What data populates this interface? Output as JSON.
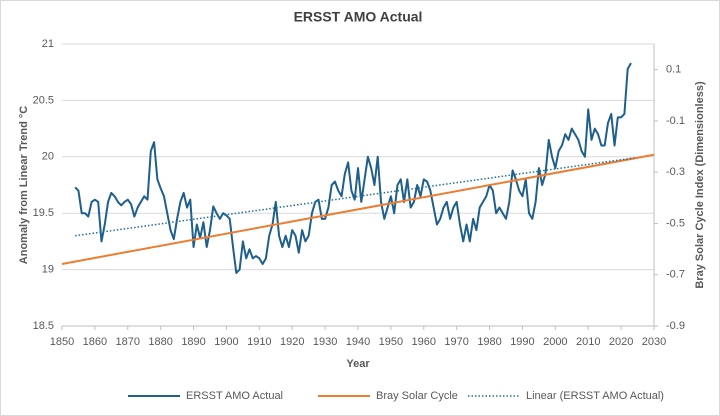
{
  "chart_data": {
    "type": "line",
    "title": "ERSST AMO Actual",
    "x_label": "Year",
    "y_label": "Anomaly from Linear Trend °C",
    "y2_label": "Bray Solar Cycle Index (Dimensionless)",
    "xlim": [
      1850,
      2030
    ],
    "xticks": [
      1850,
      1860,
      1870,
      1880,
      1890,
      1900,
      1910,
      1920,
      1930,
      1940,
      1950,
      1960,
      1970,
      1980,
      1990,
      2000,
      2010,
      2020,
      2030
    ],
    "ylim": [
      18.5,
      21
    ],
    "yticks": [
      18.5,
      19,
      19.5,
      20,
      20.5,
      21
    ],
    "y2lim": [
      -0.9,
      0.2
    ],
    "y2ticks": [
      0.1,
      -0.1,
      -0.3,
      -0.5,
      -0.7,
      -0.9
    ],
    "grid": true,
    "legend": "bottom",
    "series": [
      {
        "name": "ERSST AMO Actual",
        "color": "#1f5f8b",
        "axis": "y",
        "x": [
          1854,
          1855,
          1856,
          1857,
          1858,
          1859,
          1860,
          1861,
          1862,
          1863,
          1864,
          1865,
          1866,
          1867,
          1868,
          1869,
          1870,
          1871,
          1872,
          1873,
          1874,
          1875,
          1876,
          1877,
          1878,
          1879,
          1880,
          1881,
          1882,
          1883,
          1884,
          1885,
          1886,
          1887,
          1888,
          1889,
          1890,
          1891,
          1892,
          1893,
          1894,
          1895,
          1896,
          1897,
          1898,
          1899,
          1900,
          1901,
          1902,
          1903,
          1904,
          1905,
          1906,
          1907,
          1908,
          1909,
          1910,
          1911,
          1912,
          1913,
          1914,
          1915,
          1916,
          1917,
          1918,
          1919,
          1920,
          1921,
          1922,
          1923,
          1924,
          1925,
          1926,
          1927,
          1928,
          1929,
          1930,
          1931,
          1932,
          1933,
          1934,
          1935,
          1936,
          1937,
          1938,
          1939,
          1940,
          1941,
          1942,
          1943,
          1944,
          1945,
          1946,
          1947,
          1948,
          1949,
          1950,
          1951,
          1952,
          1953,
          1954,
          1955,
          1956,
          1957,
          1958,
          1959,
          1960,
          1961,
          1962,
          1963,
          1964,
          1965,
          1966,
          1967,
          1968,
          1969,
          1970,
          1971,
          1972,
          1973,
          1974,
          1975,
          1976,
          1977,
          1978,
          1979,
          1980,
          1981,
          1982,
          1983,
          1984,
          1985,
          1986,
          1987,
          1988,
          1989,
          1990,
          1991,
          1992,
          1993,
          1994,
          1995,
          1996,
          1997,
          1998,
          1999,
          2000,
          2001,
          2002,
          2003,
          2004,
          2005,
          2006,
          2007,
          2008,
          2009,
          2010,
          2011,
          2012,
          2013,
          2014,
          2015,
          2016,
          2017,
          2018,
          2019,
          2020,
          2021,
          2022,
          2023
        ],
        "values": [
          19.73,
          19.7,
          19.5,
          19.5,
          19.47,
          19.6,
          19.62,
          19.6,
          19.25,
          19.4,
          19.6,
          19.68,
          19.65,
          19.6,
          19.57,
          19.6,
          19.62,
          19.58,
          19.47,
          19.55,
          19.6,
          19.65,
          19.62,
          20.05,
          20.13,
          19.8,
          19.72,
          19.65,
          19.5,
          19.35,
          19.27,
          19.45,
          19.6,
          19.68,
          19.55,
          19.62,
          19.2,
          19.4,
          19.28,
          19.42,
          19.2,
          19.35,
          19.56,
          19.5,
          19.45,
          19.5,
          19.48,
          19.45,
          19.2,
          18.97,
          19.0,
          19.25,
          19.1,
          19.18,
          19.1,
          19.12,
          19.1,
          19.05,
          19.1,
          19.3,
          19.4,
          19.6,
          19.3,
          19.2,
          19.3,
          19.2,
          19.35,
          19.3,
          19.15,
          19.35,
          19.25,
          19.3,
          19.5,
          19.6,
          19.62,
          19.45,
          19.45,
          19.55,
          19.75,
          19.78,
          19.7,
          19.65,
          19.85,
          19.95,
          19.7,
          19.62,
          19.9,
          19.6,
          19.8,
          20.0,
          19.9,
          19.75,
          20.0,
          19.6,
          19.45,
          19.55,
          19.65,
          19.5,
          19.75,
          19.8,
          19.6,
          19.8,
          19.55,
          19.6,
          19.75,
          19.65,
          19.8,
          19.78,
          19.7,
          19.55,
          19.4,
          19.45,
          19.55,
          19.6,
          19.45,
          19.55,
          19.6,
          19.4,
          19.25,
          19.4,
          19.25,
          19.45,
          19.35,
          19.55,
          19.6,
          19.65,
          19.75,
          19.7,
          19.5,
          19.55,
          19.5,
          19.45,
          19.6,
          19.88,
          19.8,
          19.7,
          19.65,
          19.8,
          19.5,
          19.45,
          19.6,
          19.9,
          19.75,
          19.85,
          20.15,
          20.0,
          19.9,
          20.05,
          20.1,
          20.2,
          20.15,
          20.25,
          20.2,
          20.15,
          20.05,
          20.0,
          20.42,
          20.15,
          20.25,
          20.2,
          20.1,
          20.1,
          20.3,
          20.38,
          20.1,
          20.35,
          20.35,
          20.38,
          20.78,
          20.83
        ]
      },
      {
        "name": "Bray Solar Cycle",
        "color": "#ed7d31",
        "axis": "y2",
        "x": [
          1850,
          2030
        ],
        "values": [
          -0.658,
          -0.232
        ]
      },
      {
        "name": "Linear (ERSST AMO Actual)",
        "color": "#1f6f9a",
        "axis": "y",
        "dash": "dotted",
        "x": [
          1854,
          2024
        ],
        "values": [
          19.3,
          19.99
        ]
      }
    ]
  }
}
